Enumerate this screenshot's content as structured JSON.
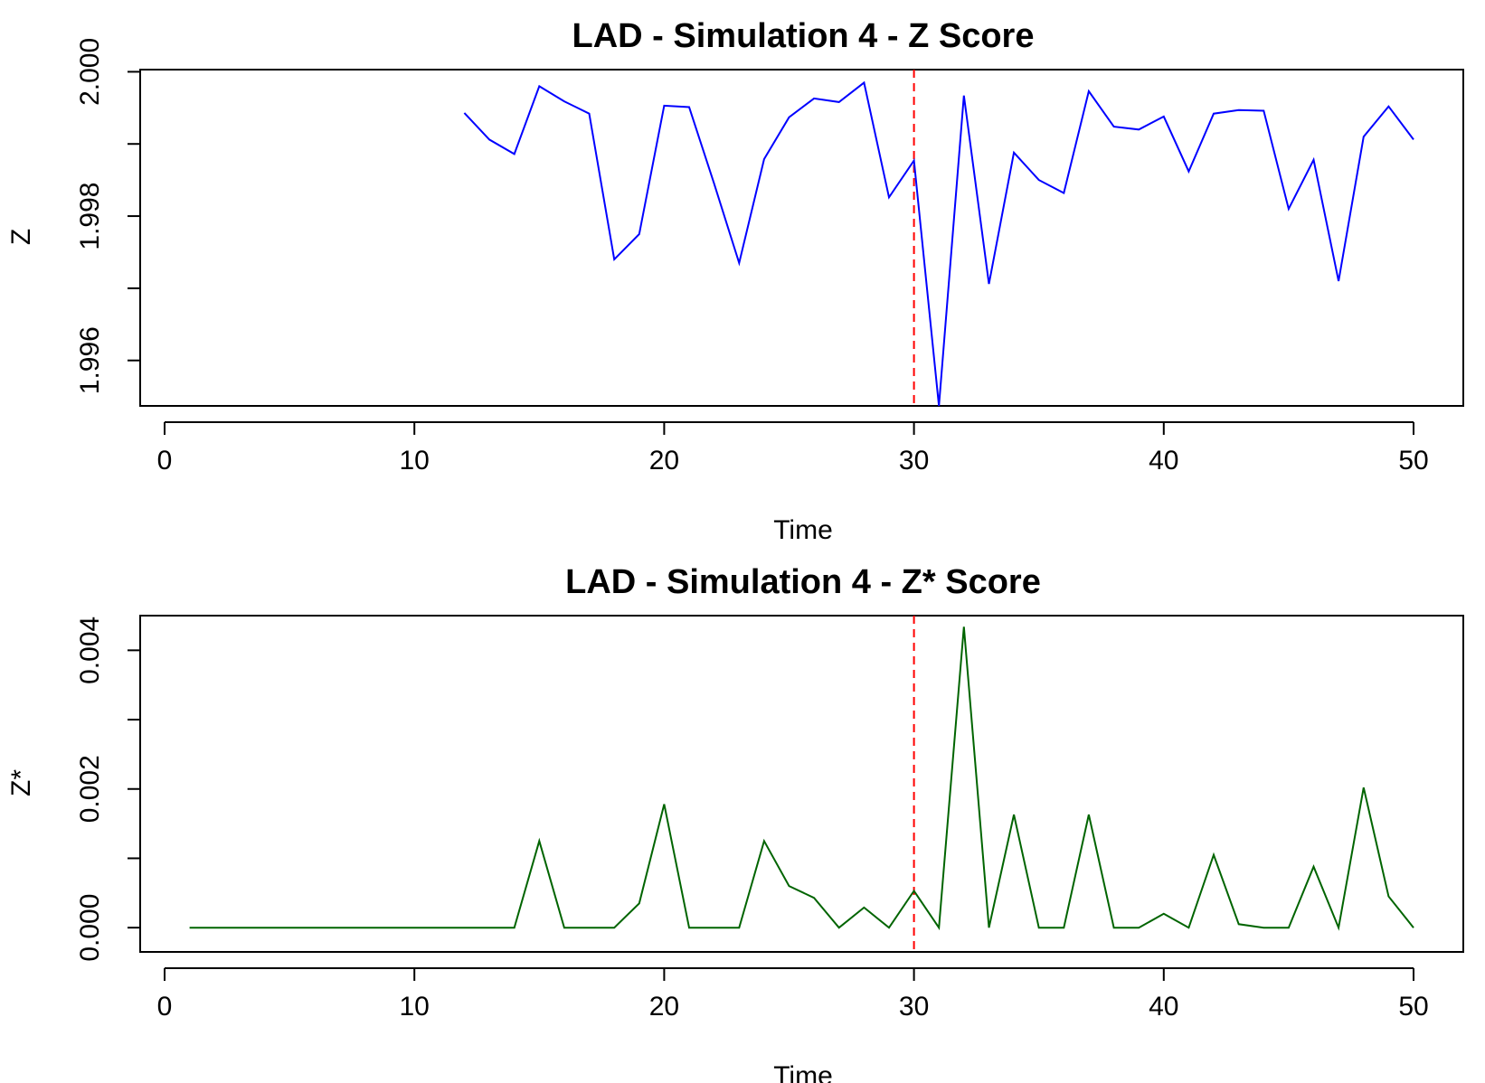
{
  "chart_data": [
    {
      "type": "line",
      "title": "LAD - Simulation 4 - Z Score",
      "xlabel": "Time",
      "ylabel": "Z",
      "xlim": [
        0,
        50
      ],
      "ylim": [
        1.99537,
        2.00003
      ],
      "xticks": [
        0,
        10,
        20,
        30,
        40,
        50
      ],
      "yticks": [
        1.996,
        1.997,
        1.998,
        1.999,
        2.0
      ],
      "ytick_labels": [
        "1.996",
        "",
        "1.998",
        "",
        "2.000"
      ],
      "xtick_labels": [
        "0",
        "10",
        "20",
        "30",
        "40",
        "50"
      ],
      "grid": false,
      "vline": {
        "x": 30,
        "color": "#ff0000",
        "style": "dashed"
      },
      "series": [
        {
          "color": "#0000ff",
          "x": [
            12,
            13,
            14,
            15,
            16,
            17,
            18,
            19,
            20,
            21,
            22,
            23,
            24,
            25,
            26,
            27,
            28,
            29,
            30,
            31,
            32,
            33,
            34,
            35,
            36,
            37,
            38,
            39,
            40,
            41,
            42,
            43,
            44,
            45,
            46,
            47,
            48,
            49,
            50
          ],
          "values": [
            1.99943,
            1.99906,
            1.99886,
            1.9998,
            1.99959,
            1.99942,
            1.9974,
            1.99775,
            1.99953,
            1.99951,
            1.99845,
            1.99735,
            1.99879,
            1.99937,
            1.99963,
            1.99958,
            1.99985,
            1.99826,
            1.99877,
            1.99537,
            1.99967,
            1.99706,
            1.99888,
            1.9985,
            1.99832,
            1.99973,
            1.99924,
            1.9992,
            1.99938,
            1.99862,
            1.99942,
            1.99947,
            1.99946,
            1.9981,
            1.99878,
            1.9971,
            1.9991,
            1.99952,
            1.99906
          ]
        }
      ]
    },
    {
      "type": "line",
      "title": "LAD - Simulation 4 - Z* Score",
      "xlabel": "Time",
      "ylabel": "Z*",
      "xlim": [
        0,
        50
      ],
      "ylim": [
        -0.00035,
        0.0045
      ],
      "xticks": [
        0,
        10,
        20,
        30,
        40,
        50
      ],
      "yticks": [
        0.0,
        0.001,
        0.002,
        0.003,
        0.004
      ],
      "ytick_labels": [
        "0.000",
        "",
        "0.002",
        "",
        "0.004"
      ],
      "xtick_labels": [
        "0",
        "10",
        "20",
        "30",
        "40",
        "50"
      ],
      "grid": false,
      "vline": {
        "x": 30,
        "color": "#ff0000",
        "style": "dashed"
      },
      "series": [
        {
          "color": "#006400",
          "x": [
            1,
            2,
            3,
            4,
            5,
            6,
            7,
            8,
            9,
            10,
            11,
            12,
            13,
            14,
            15,
            16,
            17,
            18,
            19,
            20,
            21,
            22,
            23,
            24,
            25,
            26,
            27,
            28,
            29,
            30,
            31,
            32,
            33,
            34,
            35,
            36,
            37,
            38,
            39,
            40,
            41,
            42,
            43,
            44,
            45,
            46,
            47,
            48,
            49,
            50
          ],
          "values": [
            0,
            0,
            0,
            0,
            0,
            0,
            0,
            0,
            0,
            0,
            0,
            0,
            0,
            0,
            0.00125,
            0,
            0,
            0,
            0.00035,
            0.00178,
            0,
            0,
            0,
            0.00125,
            0.0006,
            0.00043,
            0,
            0.00029,
            0,
            0.00053,
            0,
            0.00434,
            0,
            0.00163,
            0,
            0,
            0.00163,
            0,
            0,
            0.0002,
            0,
            0.00105,
            5e-05,
            0,
            0,
            0.00088,
            0,
            0.00202,
            0.00045,
            0
          ]
        }
      ]
    }
  ]
}
